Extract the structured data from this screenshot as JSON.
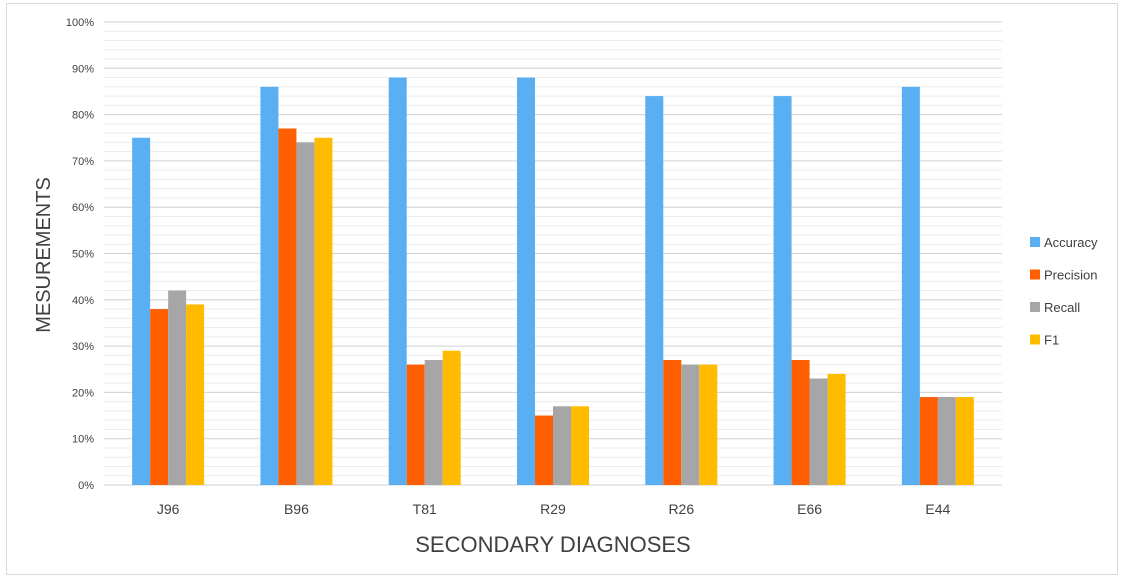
{
  "chart_data": {
    "type": "bar",
    "xlabel": "SECONDARY DIAGNOSES",
    "ylabel": "MESUREMENTS",
    "ylim": [
      0,
      100
    ],
    "y_ticks": [
      "0%",
      "10%",
      "20%",
      "30%",
      "40%",
      "50%",
      "60%",
      "70%",
      "80%",
      "90%",
      "100%"
    ],
    "categories": [
      "J96",
      "B96",
      "T81",
      "R29",
      "R26",
      "E66",
      "E44"
    ],
    "series": [
      {
        "name": "Accuracy",
        "color": "#5aaff2",
        "values": [
          75,
          86,
          88,
          88,
          84,
          84,
          86
        ]
      },
      {
        "name": "Precision",
        "color": "#ff5f00",
        "values": [
          38,
          77,
          26,
          15,
          27,
          27,
          19
        ]
      },
      {
        "name": "Recall",
        "color": "#a6a6a6",
        "values": [
          42,
          74,
          27,
          17,
          26,
          23,
          19
        ]
      },
      {
        "name": "F1",
        "color": "#ffbb00",
        "values": [
          39,
          75,
          29,
          17,
          26,
          24,
          19
        ]
      }
    ],
    "grid": true,
    "legend_position": "right"
  }
}
